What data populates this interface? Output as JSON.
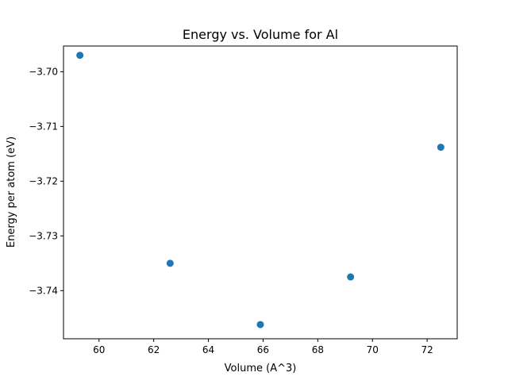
{
  "chart_data": {
    "type": "scatter",
    "title": "Energy vs. Volume for Al",
    "xlabel": "Volume (A^3)",
    "ylabel": "Energy per atom (eV)",
    "xlim": [
      58.7,
      73.1
    ],
    "ylim": [
      -3.7488,
      -3.6953
    ],
    "xticks": [
      60,
      62,
      64,
      66,
      68,
      70,
      72
    ],
    "xtick_labels": [
      "60",
      "62",
      "64",
      "66",
      "68",
      "70",
      "72"
    ],
    "yticks": [
      -3.74,
      -3.73,
      -3.72,
      -3.71,
      -3.7
    ],
    "ytick_labels": [
      "−3.74",
      "−3.73",
      "−3.72",
      "−3.71",
      "−3.70"
    ],
    "grid": false,
    "marker_color": "#1f77b4",
    "x": [
      59.3,
      62.6,
      65.9,
      69.2,
      72.5
    ],
    "y": [
      -3.697,
      -3.735,
      -3.7462,
      -3.7375,
      -3.7138
    ]
  }
}
